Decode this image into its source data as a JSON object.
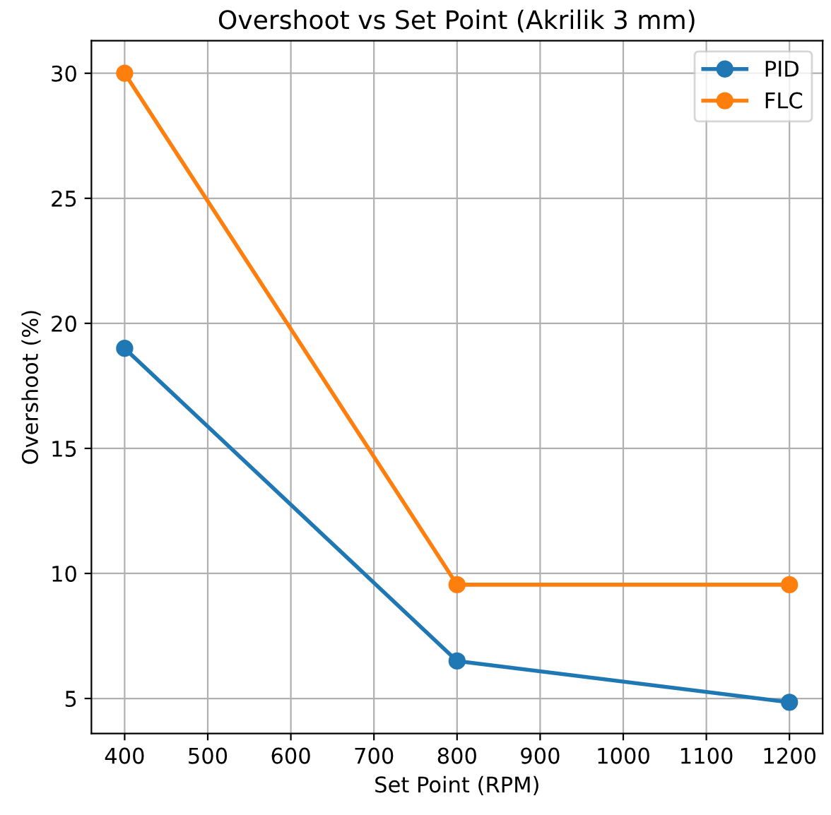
{
  "chart_data": {
    "type": "line",
    "title": "Overshoot vs Set Point (Akrilik 3 mm)",
    "xlabel": "Set Point (RPM)",
    "ylabel": "Overshoot (%)",
    "x": [
      400,
      800,
      1200
    ],
    "series": [
      {
        "name": "PID",
        "color": "#1f77b4",
        "values": [
          19,
          6.5,
          4.85
        ]
      },
      {
        "name": "FLC",
        "color": "#ff7f0e",
        "values": [
          30,
          9.55,
          9.55
        ]
      }
    ],
    "xlim": [
      360,
      1240
    ],
    "xticks": [
      400,
      500,
      600,
      700,
      800,
      900,
      1000,
      1100,
      1200
    ],
    "ylim": [
      3.6,
      31.3
    ],
    "yticks": [
      5,
      10,
      15,
      20,
      25,
      30
    ],
    "grid": true,
    "legend": "top right",
    "marker": "circle",
    "line_style": "solid"
  }
}
